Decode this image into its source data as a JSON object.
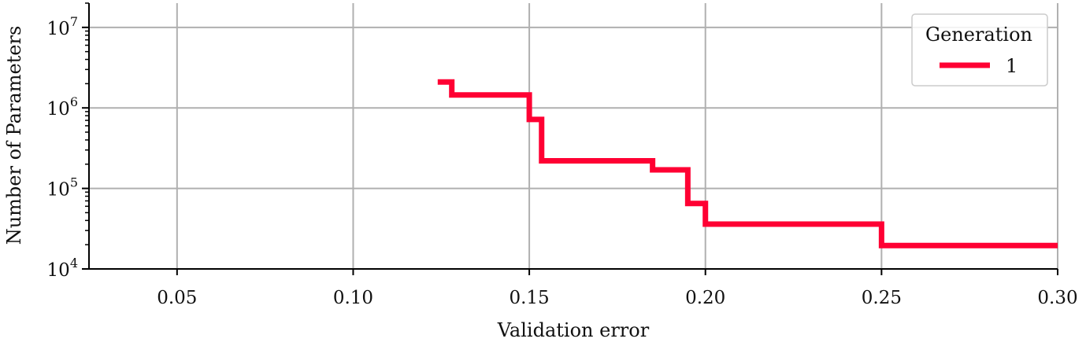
{
  "chart_data": {
    "type": "line",
    "xlabel": "Validation error",
    "ylabel": "Number of Parameters",
    "xlim": [
      0.025,
      0.3
    ],
    "ylim": [
      10000,
      20000000
    ],
    "yscale": "log",
    "grid": true,
    "xticks": [
      0.05,
      0.1,
      0.15,
      0.2,
      0.25,
      0.3
    ],
    "xtick_labels": [
      "0.05",
      "0.10",
      "0.15",
      "0.20",
      "0.25",
      "0.30"
    ],
    "yticks": [
      {
        "value": 10000,
        "base": "10",
        "exp": "4"
      },
      {
        "value": 100000,
        "base": "10",
        "exp": "5"
      },
      {
        "value": 1000000,
        "base": "10",
        "exp": "6"
      },
      {
        "value": 10000000,
        "base": "10",
        "exp": "7"
      }
    ],
    "legend": {
      "title": "Generation",
      "placement": "top-right"
    },
    "series": [
      {
        "name": "1",
        "color": "#ff0033",
        "step": true,
        "x": [
          0.124,
          0.128,
          0.15,
          0.1535,
          0.185,
          0.195,
          0.2,
          0.25,
          0.3
        ],
        "y": [
          2100000,
          1450000,
          720000,
          220000,
          170000,
          65000,
          36000,
          19500,
          19500
        ]
      }
    ]
  }
}
